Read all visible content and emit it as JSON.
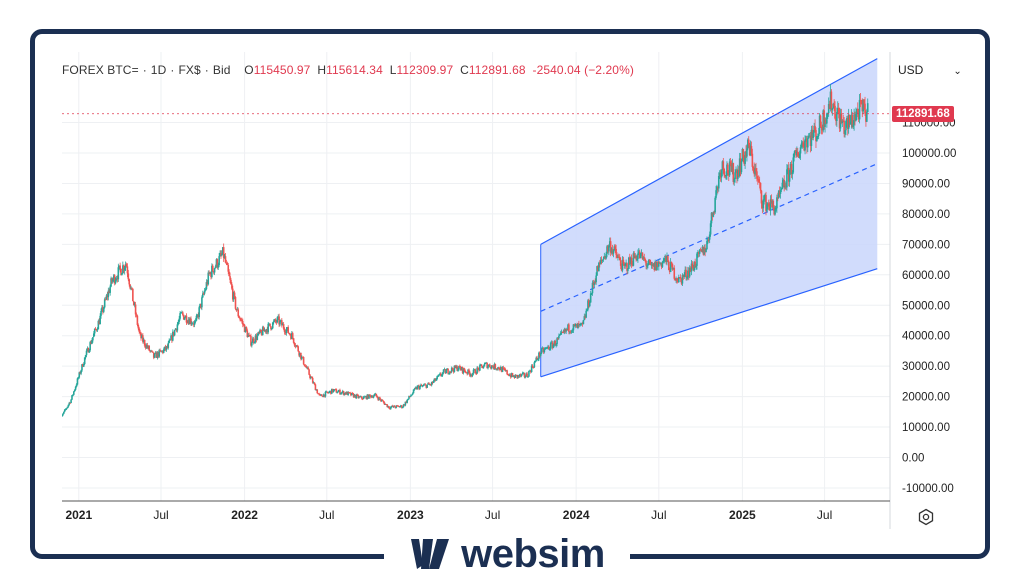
{
  "header": {
    "symbol": "FOREX BTC=",
    "interval": "1D",
    "source": "FX$",
    "price_type": "Bid",
    "open_label": "O",
    "open": "115450.97",
    "high_label": "H",
    "high": "115614.34",
    "low_label": "L",
    "low": "112309.97",
    "close_label": "C",
    "close": "112891.68",
    "change": "-2540.04 (−2.20%)"
  },
  "currency": "USD",
  "last_price_tag": "112891.68",
  "brand": "websim",
  "colors": {
    "up": "#26a69a",
    "down": "#ef5350",
    "channel_line": "#2962ff",
    "channel_fill": "#c9d6fc",
    "brand": "#1b2f52",
    "tag": "#e0394f"
  },
  "chart_data": {
    "type": "candlestick",
    "title": "",
    "ylim": [
      -15000,
      125000
    ],
    "y_ticks": [
      "110000.00",
      "100000.00",
      "90000.00",
      "80000.00",
      "70000.00",
      "60000.00",
      "50000.00",
      "40000.00",
      "30000.00",
      "20000.00",
      "10000.00",
      "0.00",
      "-10000.00"
    ],
    "x_ticks": [
      "2021",
      "Jul",
      "2022",
      "Jul",
      "2023",
      "Jul",
      "2024",
      "Jul",
      "2025",
      "Jul"
    ],
    "series": [
      {
        "values": [
          [
            "2020-11",
            11000
          ],
          [
            "2020-12",
            19000
          ],
          [
            "2021-01",
            33000
          ],
          [
            "2021-02",
            45000
          ],
          [
            "2021-03",
            58000
          ],
          [
            "2021-04",
            64000
          ],
          [
            "2021-05",
            40000
          ],
          [
            "2021-06",
            33000
          ],
          [
            "2021-07",
            36000
          ],
          [
            "2021-08",
            47000
          ],
          [
            "2021-09",
            44000
          ],
          [
            "2021-10",
            60000
          ],
          [
            "2021-11",
            67000
          ],
          [
            "2021-12",
            48000
          ],
          [
            "2022-01",
            38000
          ],
          [
            "2022-02",
            42000
          ],
          [
            "2022-03",
            45000
          ],
          [
            "2022-04",
            40000
          ],
          [
            "2022-05",
            30000
          ],
          [
            "2022-06",
            20000
          ],
          [
            "2022-07",
            22000
          ],
          [
            "2022-08",
            21000
          ],
          [
            "2022-09",
            19500
          ],
          [
            "2022-10",
            20500
          ],
          [
            "2022-11",
            16500
          ],
          [
            "2022-12",
            16800
          ],
          [
            "2023-01",
            23000
          ],
          [
            "2023-02",
            24000
          ],
          [
            "2023-03",
            28000
          ],
          [
            "2023-04",
            29500
          ],
          [
            "2023-05",
            27500
          ],
          [
            "2023-06",
            30500
          ],
          [
            "2023-07",
            29500
          ],
          [
            "2023-08",
            26500
          ],
          [
            "2023-09",
            27000
          ],
          [
            "2023-10",
            34500
          ],
          [
            "2023-11",
            37500
          ],
          [
            "2023-12",
            42500
          ],
          [
            "2024-01",
            43000
          ],
          [
            "2024-02",
            61000
          ],
          [
            "2024-03",
            70000
          ],
          [
            "2024-04",
            62000
          ],
          [
            "2024-05",
            67000
          ],
          [
            "2024-06",
            62000
          ],
          [
            "2024-07",
            65000
          ],
          [
            "2024-08",
            58000
          ],
          [
            "2024-09",
            63000
          ],
          [
            "2024-10",
            70000
          ],
          [
            "2024-11",
            96000
          ],
          [
            "2024-12",
            93000
          ],
          [
            "2025-01",
            102000
          ],
          [
            "2025-02",
            84000
          ],
          [
            "2025-03",
            82000
          ],
          [
            "2025-04",
            94000
          ],
          [
            "2025-05",
            104000
          ],
          [
            "2025-06",
            107000
          ],
          [
            "2025-07",
            117000
          ],
          [
            "2025-08",
            108000
          ],
          [
            "2025-09",
            114000
          ],
          [
            "2025-10",
            112891.68
          ]
        ]
      }
    ],
    "regression_channel": {
      "start": "2023-10-15",
      "end": "2025-10-25",
      "center_start": 48000,
      "center_end": 96500,
      "upper_start": 70000,
      "upper_end": 131000,
      "lower_start": 26500,
      "lower_end": 62000
    }
  }
}
